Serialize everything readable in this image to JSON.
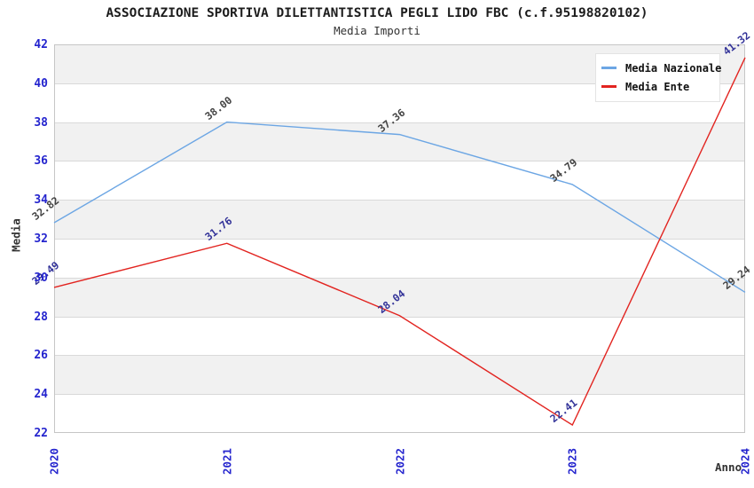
{
  "header": {
    "title": "ASSOCIAZIONE SPORTIVA DILETTANTISTICA PEGLI LIDO FBC (c.f.95198820102)",
    "subtitle": "Media Importi"
  },
  "colors": {
    "tick_label_blue": "#2424CE",
    "axis_label_gray": "#333333",
    "band_gray": "#F1F1F1",
    "band_white": "#FFFFFF",
    "grid_line": "#D9D9D9",
    "frame": "#C6C6C6",
    "nazionale_line": "#6CA6E4",
    "ente_line": "#E22420",
    "nazionale_point_label": "#444444",
    "ente_point_label": "#333399"
  },
  "chart_data": {
    "type": "line",
    "title": "ASSOCIAZIONE SPORTIVA DILETTANTISTICA PEGLI LIDO FBC (c.f.95198820102)",
    "subtitle": "Media Importi",
    "xlabel": "Anno",
    "ylabel": "Media",
    "x": [
      "2020",
      "2021",
      "2022",
      "2023",
      "2024"
    ],
    "ylim": [
      22,
      42
    ],
    "ytick_step": 2,
    "grid": "horizontal-bands-alternating",
    "legend_position": "top-right",
    "point_label_decimals": 2,
    "series": [
      {
        "name": "Media Nazionale",
        "color": "#6CA6E4",
        "label_color": "#444444",
        "values": [
          32.82,
          38.0,
          37.36,
          34.79,
          29.24
        ]
      },
      {
        "name": "Media Ente",
        "color": "#E22420",
        "label_color": "#333399",
        "values": [
          29.49,
          31.76,
          28.04,
          22.41,
          41.32
        ]
      }
    ]
  }
}
